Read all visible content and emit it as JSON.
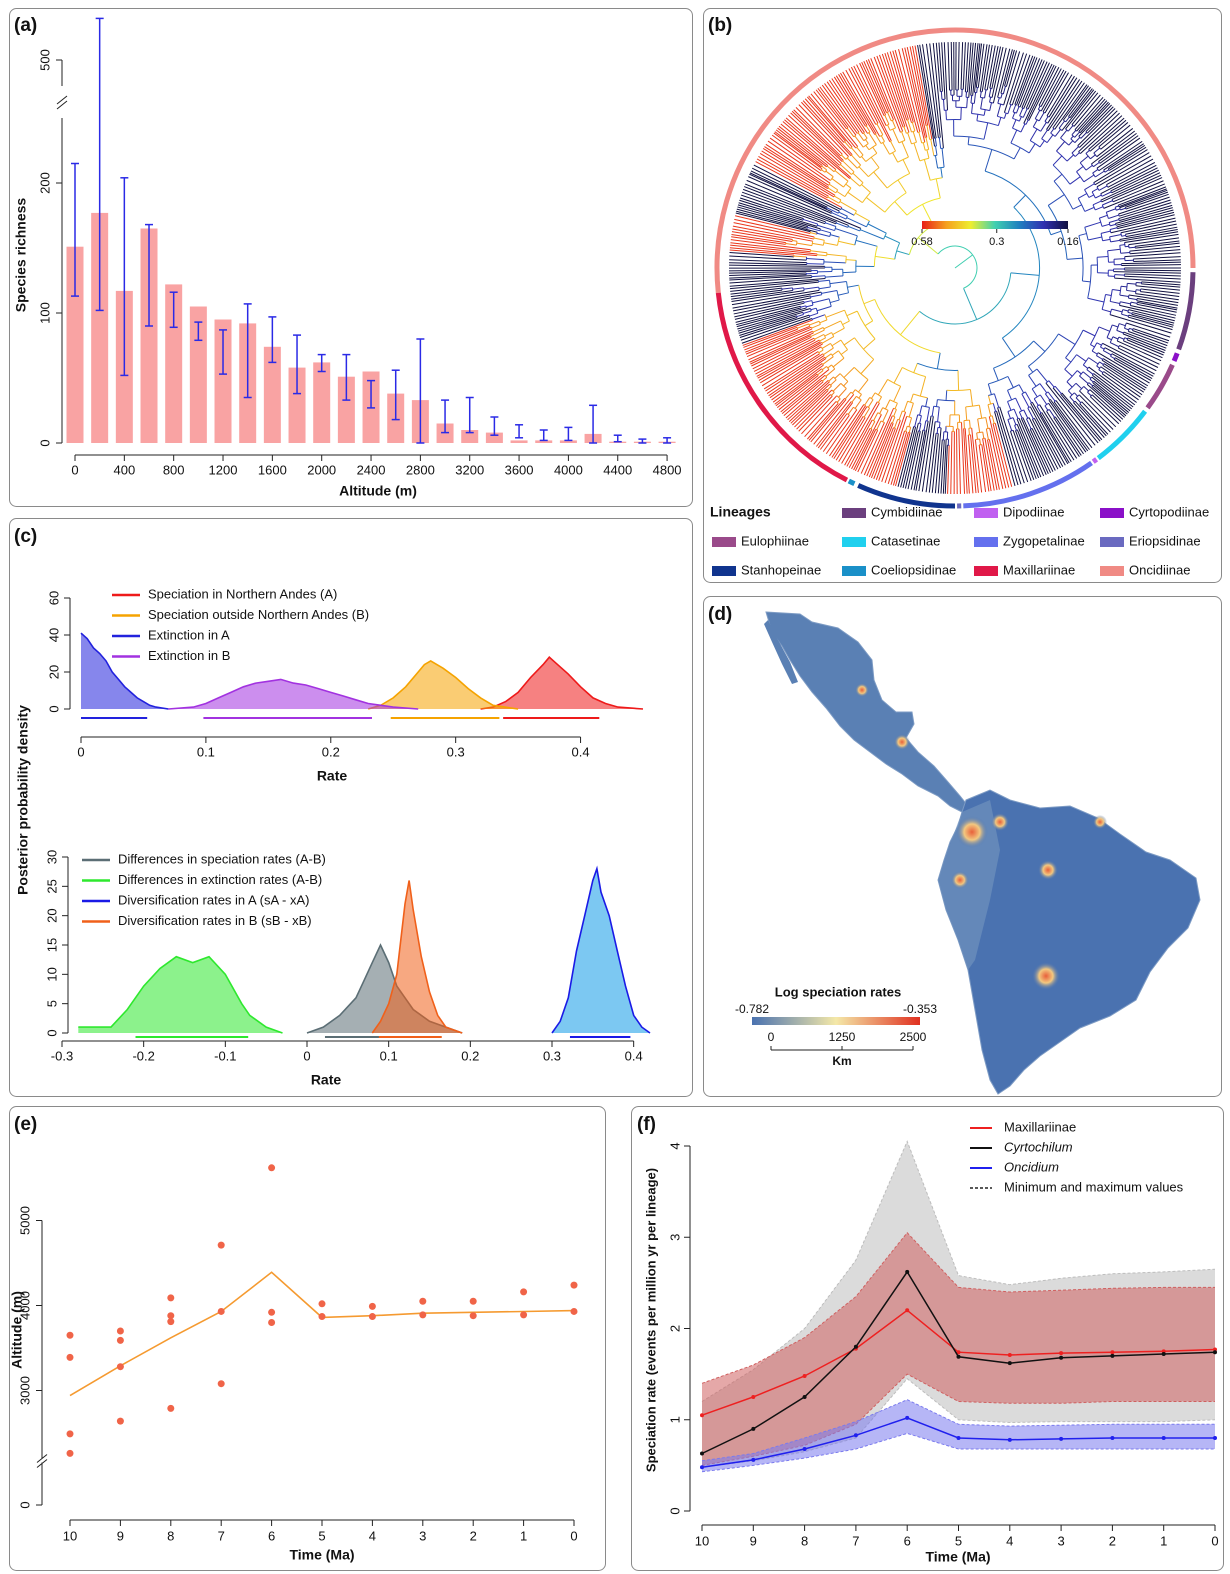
{
  "chart_data": [
    {
      "panel": "(a)",
      "type": "bar",
      "categories": [
        0,
        null,
        400,
        null,
        800,
        null,
        1200,
        null,
        1600,
        null,
        2000,
        null,
        2400,
        null,
        2800,
        null,
        3200,
        null,
        3600,
        null,
        4000,
        null,
        4400,
        null,
        4800
      ],
      "values": [
        151,
        177,
        117,
        165,
        122,
        105,
        95,
        92,
        74,
        58,
        62,
        51,
        55,
        38,
        33,
        15,
        10,
        8,
        2,
        2,
        2,
        7,
        1,
        1,
        1
      ],
      "lower": [
        113,
        102,
        52,
        90,
        89,
        79,
        53,
        35,
        62,
        38,
        55,
        33,
        27,
        18,
        0,
        8,
        8,
        6,
        4,
        2,
        2,
        0,
        1,
        0,
        0
      ],
      "upper": [
        215,
        532,
        204,
        168,
        116,
        93,
        87,
        107,
        97,
        83,
        68,
        68,
        48,
        56,
        80,
        33,
        35,
        20,
        14,
        10,
        12,
        29,
        6,
        3,
        4
      ],
      "color": "#f9a3a3",
      "error_color": "#2a2ae6",
      "xlabel": "Altitude (m)",
      "ylabel": "Species richness",
      "ylim": [
        0,
        540
      ],
      "ybreak": [
        250,
        480
      ],
      "yticks": [
        0,
        100,
        200,
        500
      ]
    },
    {
      "panel": "(b)",
      "type": "tree",
      "colorbar": {
        "ticks": [
          0.58,
          0.3,
          0.16
        ],
        "lim": [
          0.58,
          0.16
        ],
        "log": true,
        "colors": [
          "#e8201a",
          "#f5a020",
          "#eeee30",
          "#40d0b0",
          "#2080c0",
          "#3030b0",
          "#101040"
        ]
      },
      "legend_title": "Lineages",
      "series": [
        {
          "name": "Cymbidiinae",
          "color": "#6b3f7e"
        },
        {
          "name": "Dipodiinae",
          "color": "#c060f0"
        },
        {
          "name": "Cyrtopodiinae",
          "color": "#8a10c8"
        },
        {
          "name": "Eulophiinae",
          "color": "#9a4a8a"
        },
        {
          "name": "Catasetinae",
          "color": "#20d0ee"
        },
        {
          "name": "Zygopetalinae",
          "color": "#6470ee"
        },
        {
          "name": "Eriopsidinae",
          "color": "#6a6ac0"
        },
        {
          "name": "Stanhopeinae",
          "color": "#10348e"
        },
        {
          "name": "Coeliopsidinae",
          "color": "#1a90c8"
        },
        {
          "name": "Maxillariinae",
          "color": "#e01848"
        },
        {
          "name": "Oncidiinae",
          "color": "#f08a84"
        }
      ]
    },
    {
      "panel": "(c)",
      "type": "density",
      "ylabel": "Posterior probability density",
      "subplots": [
        {
          "xlabel": "Rate",
          "xlim": [
            0,
            0.45
          ],
          "xticks": [
            0,
            0.1,
            0.2,
            0.3,
            0.4
          ],
          "ylim": [
            0,
            60
          ],
          "yticks": [
            0,
            20,
            40,
            60
          ],
          "series": [
            {
              "name": "Speciation in Northern Andes (A)",
              "color": "#ee1a1a",
              "x": [
                0.32,
                0.33,
                0.34,
                0.35,
                0.36,
                0.37,
                0.375,
                0.38,
                0.39,
                0.4,
                0.41,
                0.42,
                0.43,
                0.45
              ],
              "values": [
                0,
                1,
                4,
                9,
                17,
                24,
                28,
                25,
                19,
                12,
                6,
                3,
                1,
                0
              ],
              "interval": [
                0.338,
                0.415
              ]
            },
            {
              "name": "Speciation outside Northern Andes (B)",
              "color": "#f5a300",
              "x": [
                0.23,
                0.24,
                0.25,
                0.26,
                0.27,
                0.275,
                0.28,
                0.29,
                0.3,
                0.31,
                0.32,
                0.33,
                0.35
              ],
              "values": [
                0,
                2,
                6,
                12,
                20,
                24,
                26,
                22,
                17,
                11,
                6,
                2,
                0
              ],
              "interval": [
                0.248,
                0.335
              ]
            },
            {
              "name": "Extinction in A",
              "color": "#2222dd",
              "x": [
                0,
                0.005,
                0.01,
                0.015,
                0.02,
                0.025,
                0.03,
                0.035,
                0.04,
                0.045,
                0.05,
                0.055,
                0.06,
                0.07
              ],
              "values": [
                41,
                38,
                33,
                30,
                26,
                20,
                16,
                12,
                9,
                6,
                4,
                2,
                1,
                0
              ],
              "interval": [
                0,
                0.053
              ]
            },
            {
              "name": "Extinction in B",
              "color": "#a232e0",
              "x": [
                0.07,
                0.09,
                0.1,
                0.11,
                0.12,
                0.13,
                0.14,
                0.15,
                0.16,
                0.17,
                0.18,
                0.19,
                0.2,
                0.21,
                0.22,
                0.23,
                0.25,
                0.27
              ],
              "values": [
                0,
                1,
                3,
                6,
                9,
                12,
                14,
                15,
                16,
                14,
                13,
                11,
                9,
                7,
                5,
                3,
                1,
                0
              ],
              "interval": [
                0.098,
                0.233
              ]
            }
          ]
        },
        {
          "xlabel": "Rate",
          "xlim": [
            -0.3,
            0.42
          ],
          "xticks": [
            -0.3,
            -0.2,
            -0.1,
            0,
            0.1,
            0.2,
            0.3,
            0.4
          ],
          "ylim": [
            0,
            30
          ],
          "yticks": [
            0,
            5,
            10,
            15,
            20,
            25,
            30
          ],
          "series": [
            {
              "name": "Differences in speciation rates (A-B)",
              "color": "#5b6e75",
              "x": [
                0,
                0.02,
                0.04,
                0.06,
                0.07,
                0.08,
                0.09,
                0.1,
                0.11,
                0.12,
                0.13,
                0.15,
                0.17,
                0.19
              ],
              "values": [
                0,
                1,
                3,
                6,
                9,
                12,
                15,
                12,
                8,
                6,
                4,
                2,
                1,
                0
              ],
              "interval": [
                0.022,
                0.155
              ]
            },
            {
              "name": "Differences in extinction rates (A-B)",
              "color": "#2ee82e",
              "x": [
                -0.28,
                -0.24,
                -0.22,
                -0.2,
                -0.18,
                -0.16,
                -0.14,
                -0.12,
                -0.1,
                -0.08,
                -0.07,
                -0.05,
                -0.03
              ],
              "values": [
                1,
                1,
                4,
                8,
                11,
                13,
                12,
                13,
                10,
                5,
                3,
                1,
                0
              ],
              "interval": [
                -0.21,
                -0.072
              ]
            },
            {
              "name": "Diversification rates in A (sA - xA)",
              "color": "#1a1ae6",
              "fill": "#7cc8f2",
              "x": [
                0.3,
                0.31,
                0.32,
                0.33,
                0.34,
                0.35,
                0.355,
                0.36,
                0.37,
                0.38,
                0.39,
                0.4,
                0.41,
                0.42
              ],
              "values": [
                0,
                2,
                6,
                14,
                20,
                26,
                28,
                24,
                20,
                14,
                8,
                3,
                1,
                0
              ],
              "interval": [
                0.322,
                0.396
              ]
            },
            {
              "name": "Diversification rates in B (sB - xB)",
              "color": "#f0601a",
              "x": [
                0.08,
                0.09,
                0.1,
                0.11,
                0.115,
                0.12,
                0.125,
                0.13,
                0.14,
                0.15,
                0.16,
                0.17,
                0.19
              ],
              "values": [
                0,
                2,
                5,
                10,
                16,
                22,
                26,
                21,
                13,
                7,
                3,
                1,
                0
              ],
              "interval": [
                0.088,
                0.165
              ]
            }
          ]
        }
      ]
    },
    {
      "panel": "(d)",
      "type": "map",
      "colorbar": {
        "title": "Log speciation rates",
        "lim": [
          -0.782,
          -0.353
        ],
        "colors": [
          "#4a72b0",
          "#f4e8a8",
          "#e03020"
        ]
      },
      "scalebar": {
        "ticks": [
          0,
          1250,
          2500
        ],
        "unit": "Km"
      }
    },
    {
      "panel": "(e)",
      "type": "scatter",
      "xlabel": "Time (Ma)",
      "ylabel": "Altitude (m)",
      "xlim": [
        10,
        0
      ],
      "xticks": [
        10,
        9,
        8,
        7,
        6,
        5,
        4,
        3,
        2,
        1,
        0
      ],
      "ylim": [
        0,
        5800
      ],
      "ybreak": [
        500,
        2200
      ],
      "yticks": [
        0,
        3000,
        4000,
        5000
      ],
      "points": {
        "color": "#f06448",
        "x": [
          10,
          10,
          10,
          10,
          9,
          9,
          9,
          9,
          8,
          8,
          8,
          8,
          7,
          7,
          7,
          6,
          6,
          6,
          5,
          5,
          4,
          4,
          3,
          3,
          2,
          2,
          1,
          1,
          0,
          0
        ],
        "values": [
          3650,
          3390,
          2490,
          2260,
          3700,
          3590,
          3280,
          2640,
          4090,
          3880,
          3810,
          2790,
          4710,
          3930,
          3080,
          5620,
          3920,
          3800,
          4020,
          3870,
          3990,
          3870,
          4050,
          3890,
          4050,
          3880,
          4160,
          3890,
          4240,
          3930
        ]
      },
      "line": {
        "color": "#f59a30",
        "x": [
          10,
          9,
          8,
          7,
          6,
          5,
          4,
          3,
          2,
          1,
          0
        ],
        "values": [
          2940,
          3290,
          3620,
          3930,
          4390,
          3860,
          3880,
          3910,
          3920,
          3930,
          3940
        ]
      }
    },
    {
      "panel": "(f)",
      "type": "line",
      "xlabel": "Time (Ma)",
      "ylabel": "Speciation rate (events per million yr per lineage)",
      "x": [
        10,
        9,
        8,
        7,
        6,
        5,
        4,
        3,
        2,
        1,
        0
      ],
      "xlim": [
        10,
        0
      ],
      "xticks": [
        10,
        9,
        8,
        7,
        6,
        5,
        4,
        3,
        2,
        1,
        0
      ],
      "ylim": [
        0,
        4
      ],
      "yticks": [
        0,
        1,
        2,
        3,
        4
      ],
      "band_label": "Minimum and maximum values",
      "series": [
        {
          "name": "Maxillariinae",
          "color": "#ee2020",
          "band_color": "#d06060",
          "style": "normal",
          "values": [
            1.05,
            1.25,
            1.48,
            1.78,
            2.2,
            1.74,
            1.71,
            1.73,
            1.74,
            1.75,
            1.77
          ],
          "lower": [
            0.5,
            0.6,
            0.72,
            0.95,
            1.5,
            1.2,
            1.18,
            1.18,
            1.2,
            1.2,
            1.2
          ],
          "upper": [
            1.4,
            1.6,
            1.9,
            2.35,
            3.05,
            2.45,
            2.4,
            2.42,
            2.44,
            2.45,
            2.45
          ]
        },
        {
          "name": "Cyrtochilum",
          "color": "#111111",
          "band_color": "#bdbdbd",
          "style": "italic",
          "values": [
            0.63,
            0.9,
            1.25,
            1.8,
            2.62,
            1.69,
            1.62,
            1.68,
            1.7,
            1.72,
            1.74
          ],
          "lower": [
            0.48,
            0.55,
            0.65,
            0.8,
            1.45,
            1.0,
            0.97,
            0.98,
            0.98,
            0.98,
            1.0
          ],
          "upper": [
            1.2,
            1.55,
            2.0,
            2.75,
            4.05,
            2.58,
            2.48,
            2.55,
            2.6,
            2.62,
            2.65
          ]
        },
        {
          "name": "Oncidium",
          "color": "#2020ee",
          "band_color": "#7a7aee",
          "style": "italic",
          "values": [
            0.48,
            0.56,
            0.68,
            0.83,
            1.02,
            0.8,
            0.78,
            0.79,
            0.8,
            0.8,
            0.8
          ],
          "lower": [
            0.43,
            0.5,
            0.58,
            0.68,
            0.85,
            0.68,
            0.68,
            0.68,
            0.68,
            0.68,
            0.68
          ],
          "upper": [
            0.55,
            0.63,
            0.8,
            0.98,
            1.22,
            0.95,
            0.93,
            0.94,
            0.95,
            0.95,
            0.95
          ]
        }
      ]
    }
  ]
}
